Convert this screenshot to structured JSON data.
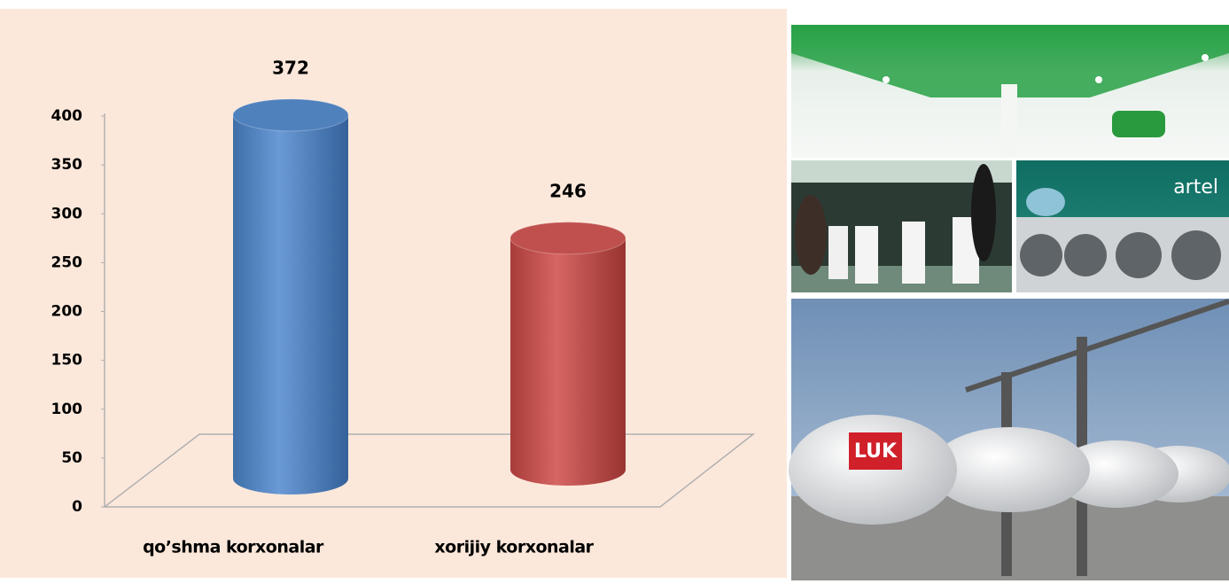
{
  "chart_data": {
    "type": "bar3d",
    "categories": [
      "qo’shma korxonalar",
      "xorijiy korxonalar"
    ],
    "series": [
      {
        "colors": [
          "#4f81bd",
          "#c0504d"
        ],
        "values": [
          372,
          246
        ]
      }
    ],
    "ylim": [
      0,
      400
    ],
    "yticks": [
      0,
      50,
      100,
      150,
      200,
      250,
      300,
      350,
      400
    ]
  },
  "images": {
    "washer_logo": "artel",
    "tank_logo": "LUK"
  }
}
